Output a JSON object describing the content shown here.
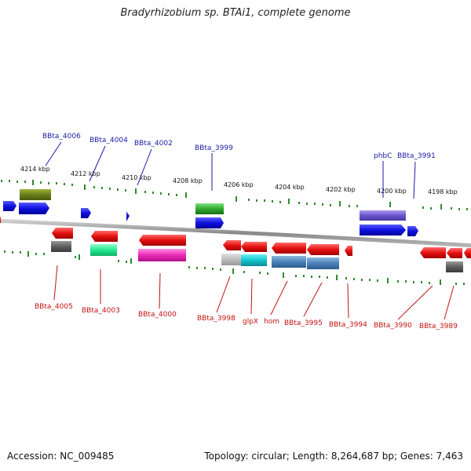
{
  "header": {
    "title": "Bradyrhizobium sp. BTAi1, complete genome"
  },
  "footer": {
    "accession": "Accession: NC_009485",
    "genome_info": "Topology: circular; Length: 8,264,687 bp; Genes: 7,463"
  },
  "kbp_labels": [
    "4214 kbp",
    "4212 kbp",
    "4210 kbp",
    "4208 kbp",
    "4206 kbp",
    "4204 kbp",
    "4202 kbp",
    "4200 kbp",
    "4198 kbp"
  ],
  "top_genes": [
    "BBta_4006",
    "BBta_4004",
    "BBta_4002",
    "BBta_3999",
    "phbC",
    "BBta_3991"
  ],
  "bottom_genes": [
    "BBta_4005",
    "BBta_4003",
    "BBta_4000",
    "BBta_3998",
    "glpX",
    "hom",
    "BBta_3995",
    "BBta_3994",
    "BBta_3990",
    "BBta_3989"
  ],
  "colors": {
    "forward_label": "#1a1aa6",
    "reverse_label": "#c41212",
    "tick": "#2e8b2e",
    "backbone": "#8c8c8c",
    "forward_gene": "#1414e6",
    "reverse_gene": "#e61414"
  }
}
